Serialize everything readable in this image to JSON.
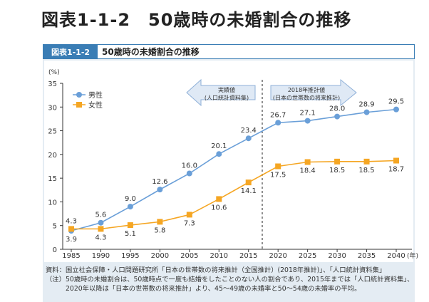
{
  "page_title": "図表1-1-2　50歳時の未婚割合の推移",
  "figure_tag": "図表1-1-2",
  "figure_title": "50歳時の未婚割合の推移",
  "chart_data": {
    "type": "line",
    "yunit": "(%)",
    "xunit": "(年)",
    "ylim": [
      0,
      35
    ],
    "yticks": [
      0,
      5,
      10,
      15,
      20,
      25,
      30,
      35
    ],
    "categories": [
      "1985",
      "1990",
      "1995",
      "2000",
      "2005",
      "2010",
      "2015",
      "2020",
      "2025",
      "2030",
      "2035",
      "2040"
    ],
    "series": [
      {
        "name": "男性",
        "color": "#6a9fd8",
        "marker": "circle",
        "values": [
          3.9,
          5.6,
          9.0,
          12.6,
          16.0,
          20.1,
          23.4,
          26.7,
          27.1,
          28.0,
          28.9,
          29.5
        ]
      },
      {
        "name": "女性",
        "color": "#f5a623",
        "marker": "square",
        "values": [
          4.3,
          4.3,
          5.1,
          5.8,
          7.3,
          10.6,
          14.1,
          17.5,
          18.4,
          18.5,
          18.5,
          18.7
        ]
      }
    ],
    "legend": "top-left",
    "annotations": {
      "actual_line1": "実績値",
      "actual_line2": "(人口統計資料集)",
      "projection_line1": "2018年推計値",
      "projection_line2": "(日本の世帯数の将来推計)"
    }
  },
  "notes": [
    {
      "key": "資料：",
      "text": "国立社会保障・人口問題研究所「日本の世帯数の将来推計（全国推計）(2018年推計)」、「人口統計資料集」"
    },
    {
      "key": "（注）",
      "text": "50歳時の未婚割合は、50歳時点で一度も結婚をしたことのない人の割合であり、2015年までは「人口統計資料集」、2020年以降は「日本の世帯数の将来推計」より、45～49歳の未婚率と50～54歳の未婚率の平均。"
    }
  ]
}
